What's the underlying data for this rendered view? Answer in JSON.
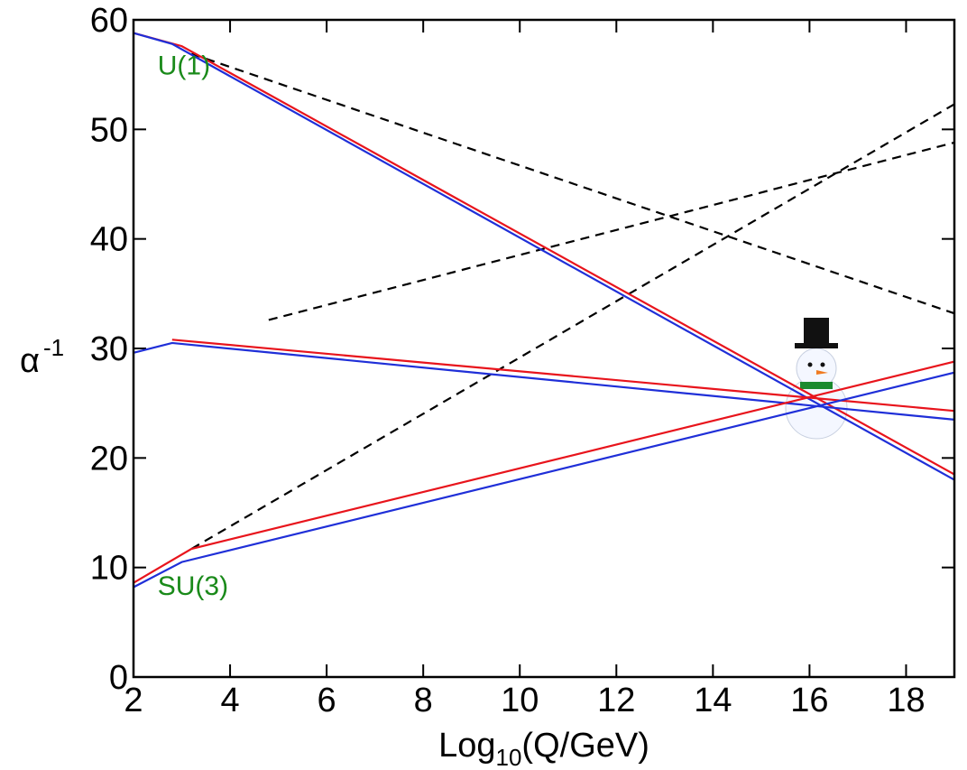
{
  "chart_data": {
    "type": "line",
    "xlabel": {
      "text": "Log",
      "sub": "10",
      "rest": "(Q/GeV)"
    },
    "ylabel": {
      "text": "α",
      "sup": "-1"
    },
    "xlim": [
      2,
      19
    ],
    "xticks": [
      2,
      4,
      6,
      8,
      10,
      12,
      14,
      16,
      18
    ],
    "ylim": [
      0,
      60
    ],
    "yticks": [
      0,
      10,
      20,
      30,
      40,
      50,
      60
    ],
    "annotations": [
      {
        "text": "U(1)",
        "x": 2.5,
        "y": 55,
        "color": "#1a8a1a"
      },
      {
        "text": "SU(3)",
        "x": 2.5,
        "y": 7.5,
        "color": "#1a8a1a"
      }
    ],
    "series": [
      {
        "color": "#000000",
        "dashed": true,
        "x": [
          3.2,
          19
        ],
        "values": [
          56.9,
          33.2
        ]
      },
      {
        "color": "#000000",
        "dashed": true,
        "x": [
          4.8,
          19
        ],
        "values": [
          32.6,
          48.8
        ]
      },
      {
        "color": "#000000",
        "dashed": true,
        "x": [
          3.2,
          19
        ],
        "values": [
          11.7,
          52.3
        ]
      },
      {
        "color": "#e8141c",
        "dashed": false,
        "x": [
          2,
          3,
          19
        ],
        "values": [
          58.8,
          57.6,
          18.5
        ]
      },
      {
        "color": "#1f2fd8",
        "dashed": false,
        "x": [
          2,
          2.8,
          19
        ],
        "values": [
          58.8,
          57.8,
          18.0
        ]
      },
      {
        "color": "#e8141c",
        "dashed": false,
        "x": [
          2.8,
          19
        ],
        "values": [
          30.8,
          24.3
        ]
      },
      {
        "color": "#1f2fd8",
        "dashed": false,
        "x": [
          2,
          2.8,
          19
        ],
        "values": [
          29.6,
          30.5,
          23.5
        ]
      },
      {
        "color": "#e8141c",
        "dashed": false,
        "x": [
          2,
          3.2,
          19
        ],
        "values": [
          8.6,
          11.7,
          28.8
        ]
      },
      {
        "color": "#1f2fd8",
        "dashed": false,
        "x": [
          2,
          3,
          19
        ],
        "values": [
          8.2,
          10.5,
          27.8
        ]
      }
    ]
  }
}
